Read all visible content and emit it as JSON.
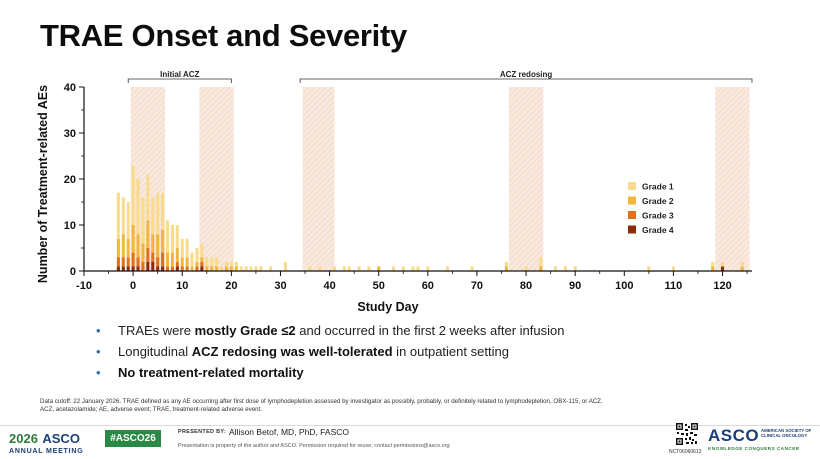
{
  "slide": {
    "title": "TRAE Onset and Severity"
  },
  "bullets": [
    {
      "parts": [
        {
          "t": "TRAEs were ",
          "b": false
        },
        {
          "t": "mostly Grade ≤2",
          "b": true
        },
        {
          "t": " and occurred in the first 2 weeks after infusion",
          "b": false
        }
      ]
    },
    {
      "parts": [
        {
          "t": "Longitudinal ",
          "b": false
        },
        {
          "t": "ACZ redosing was well-tolerated",
          "b": true
        },
        {
          "t": " in outpatient setting",
          "b": false
        }
      ]
    },
    {
      "parts": [
        {
          "t": "No treatment-related mortality",
          "b": true
        }
      ]
    }
  ],
  "footnote": {
    "line1": "Data cutoff: 22 January 2026. TRAE defined as any AE occurring after first dose of lymphodepletion assessed by investigator as possibly, probably, or definitely related to lymphodepletion, OBX-115, or ACZ.",
    "line2": "ACZ, acetazolamide; AE, adverse event; TRAE, treatment-related adverse event."
  },
  "footer": {
    "meeting_year": "2026",
    "meeting_org": "ASCO",
    "meeting_label": "ANNUAL MEETING",
    "hashtag": "#ASCO26",
    "presented_by": "PRESENTED BY:",
    "presenter": "Allison Betof, MD, PhD, FASCO",
    "property_note": "Presentation is property of the author and ASCO. Permission required for reuse; contact permissions@asco.org",
    "nct": "NCT06060613",
    "logo_word": "ASCO",
    "logo_society": "AMERICAN SOCIETY OF CLINICAL ONCOLOGY",
    "logo_tagline": "KNOWLEDGE CONQUERS CANCER"
  },
  "colors": {
    "grade1": "#f8dc8c",
    "grade2": "#f2b63c",
    "grade3": "#e0701c",
    "grade4": "#8c2c0c",
    "window_fill": "#f8e6dc",
    "bullet_dot": "#2f6fb0"
  },
  "chart_data": {
    "type": "bar",
    "stacked": true,
    "xlabel": "Study Day",
    "ylabel": "Number of Treatment-related AEs",
    "xlim": [
      -10,
      126
    ],
    "ylim": [
      0,
      40
    ],
    "xticks": [
      -10,
      0,
      10,
      20,
      30,
      40,
      50,
      60,
      70,
      80,
      90,
      100,
      110,
      120
    ],
    "yticks": [
      0,
      10,
      20,
      30,
      40
    ],
    "legend_position": "right",
    "brackets": [
      {
        "label": "Initial ACZ",
        "from": -1,
        "to": 20
      },
      {
        "label": "ACZ redosing",
        "from": 34,
        "to": 126
      }
    ],
    "shaded_windows": [
      [
        -0.5,
        6.5
      ],
      [
        13.5,
        20.5
      ],
      [
        34.5,
        41
      ],
      [
        76.5,
        83.5
      ],
      [
        118.5,
        125.5
      ]
    ],
    "series": [
      {
        "name": "Grade 1",
        "color": "#f8dc8c"
      },
      {
        "name": "Grade 2",
        "color": "#f2b63c"
      },
      {
        "name": "Grade 3",
        "color": "#e0701c"
      },
      {
        "name": "Grade 4",
        "color": "#8c2c0c"
      }
    ],
    "days": [
      -4,
      -3,
      -2,
      -1,
      0,
      1,
      2,
      3,
      4,
      5,
      6,
      7,
      8,
      9,
      10,
      11,
      12,
      13,
      14,
      15,
      16,
      17,
      18,
      19,
      20,
      21,
      22,
      23,
      24,
      25,
      26,
      28,
      31,
      36,
      38,
      41,
      43,
      44,
      46,
      48,
      50,
      53,
      55,
      57,
      58,
      60,
      64,
      69,
      76,
      80,
      83,
      86,
      88,
      90,
      105,
      110,
      118,
      120,
      124
    ],
    "grade1": [
      0,
      10,
      8,
      8,
      13,
      12,
      10,
      10,
      8,
      9,
      8,
      7,
      6,
      5,
      4,
      4,
      3,
      3,
      3,
      2,
      2,
      2,
      1,
      1,
      1,
      1,
      1,
      1,
      1,
      1,
      1,
      1,
      2,
      1,
      1,
      1,
      1,
      1,
      1,
      1,
      0,
      1,
      1,
      1,
      1,
      1,
      1,
      1,
      1,
      1,
      2,
      1,
      1,
      1,
      1,
      1,
      1,
      1,
      1
    ],
    "grade2": [
      0,
      4,
      5,
      4,
      6,
      5,
      4,
      6,
      4,
      5,
      5,
      3,
      3,
      3,
      2,
      2,
      1,
      1,
      1,
      1,
      1,
      1,
      0,
      1,
      1,
      1,
      0,
      0,
      0,
      0,
      0,
      0,
      0,
      0,
      0,
      0,
      0,
      0,
      0,
      0,
      1,
      0,
      0,
      0,
      0,
      0,
      0,
      0,
      1,
      0,
      1,
      0,
      0,
      0,
      0,
      0,
      1,
      0,
      1
    ],
    "grade3": [
      0,
      2,
      2,
      2,
      3,
      2,
      2,
      3,
      2,
      2,
      3,
      1,
      1,
      1,
      1,
      1,
      0,
      1,
      1,
      0,
      0,
      0,
      0,
      0,
      0,
      0,
      0,
      0,
      0,
      0,
      0,
      0,
      0,
      0,
      0,
      0,
      0,
      0,
      0,
      0,
      0,
      0,
      0,
      0,
      0,
      0,
      0,
      0,
      0,
      0,
      0,
      0,
      0,
      0,
      0,
      0,
      0,
      0,
      0
    ],
    "grade4": [
      0,
      1,
      1,
      1,
      1,
      1,
      0,
      2,
      2,
      1,
      1,
      0,
      0,
      1,
      0,
      0,
      0,
      0,
      1,
      0,
      0,
      0,
      0,
      0,
      0,
      0,
      0,
      0,
      0,
      0,
      0,
      0,
      0,
      0,
      0,
      0,
      0,
      0,
      0,
      0,
      0,
      0,
      0,
      0,
      0,
      0,
      0,
      0,
      0,
      0,
      0,
      0,
      0,
      0,
      0,
      0,
      0,
      1,
      0
    ]
  }
}
